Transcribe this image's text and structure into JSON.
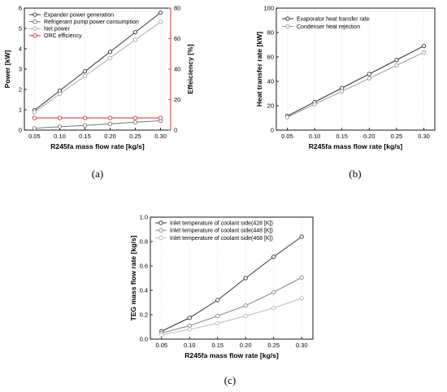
{
  "chart_data": [
    {
      "type": "line",
      "caption": "(a)",
      "x": [
        0.05,
        0.1,
        0.15,
        0.2,
        0.25,
        0.3
      ],
      "x_tick_labels": [
        "0.05",
        "0.10",
        "0.15",
        "0.20",
        "0.25",
        "0.30"
      ],
      "xlabel": "R245fa mass flow rate [kg/s]",
      "ylabel": "Power [kW]",
      "ylim": [
        0,
        6
      ],
      "y_ticks": [
        0,
        1,
        2,
        3,
        4,
        5,
        6
      ],
      "y2label": "Effeiciency [%]",
      "y2lim": [
        0,
        80
      ],
      "y2_ticks": [
        0,
        20,
        40,
        60,
        80
      ],
      "y2_color": "#d03030",
      "grid": true,
      "legend_position": "top-left",
      "series": [
        {
          "name": "Expander power generation",
          "values": [
            0.97,
            1.94,
            2.89,
            3.85,
            4.82,
            5.78
          ],
          "color": "#333333",
          "axis": "left"
        },
        {
          "name": "Refrigerant pump power consumption",
          "values": [
            0.09,
            0.17,
            0.23,
            0.31,
            0.39,
            0.46
          ],
          "color": "#777777",
          "axis": "left"
        },
        {
          "name": "Net power",
          "values": [
            0.88,
            1.78,
            2.66,
            3.55,
            4.44,
            5.32
          ],
          "color": "#aaaaaa",
          "axis": "left"
        },
        {
          "name": "ORC efficiency",
          "values": [
            8.0,
            8.0,
            8.0,
            8.0,
            8.0,
            8.0
          ],
          "color": "#d03030",
          "axis": "right"
        }
      ]
    },
    {
      "type": "line",
      "caption": "(b)",
      "x": [
        0.05,
        0.1,
        0.15,
        0.2,
        0.25,
        0.3
      ],
      "x_tick_labels": [
        "0.05",
        "0.10",
        "0.15",
        "0.20",
        "0.25",
        "0.30"
      ],
      "xlabel": "R245fa mass flow rate [kg/s]",
      "ylabel": "Heat transfer rate [kW]",
      "ylim": [
        0,
        100
      ],
      "y_ticks": [
        0,
        20,
        40,
        60,
        80,
        100
      ],
      "grid": true,
      "legend_position": "top-left",
      "series": [
        {
          "name": "Evaporator heat transfer rate",
          "values": [
            11.5,
            23.0,
            34.5,
            46.0,
            57.5,
            69.0
          ],
          "color": "#333333"
        },
        {
          "name": "Condenser heat rejection",
          "values": [
            10.6,
            21.2,
            31.8,
            42.4,
            53.1,
            63.7
          ],
          "color": "#999999"
        }
      ]
    },
    {
      "type": "line",
      "caption": "(c)",
      "x": [
        0.05,
        0.1,
        0.15,
        0.2,
        0.25,
        0.3
      ],
      "x_tick_labels": [
        "0.05",
        "0.10",
        "0.15",
        "0.20",
        "0.25",
        "0.30"
      ],
      "xlabel": "R245fa mass flow rate [kg/s]",
      "ylabel": "TEG mass flow rate [kg/s]",
      "ylim": [
        0,
        1.0
      ],
      "y_ticks": [
        0.0,
        0.2,
        0.4,
        0.6,
        0.8,
        1.0
      ],
      "y_tick_labels": [
        "0.0",
        "0.2",
        "0.4",
        "0.6",
        "0.8",
        "1.0"
      ],
      "grid": true,
      "legend_position": "top-left",
      "series": [
        {
          "name": "Inlet temperature of coolant side(428 [K])",
          "values": [
            0.065,
            0.175,
            0.32,
            0.5,
            0.675,
            0.84
          ],
          "color": "#333333"
        },
        {
          "name": "Inlet temperature of coolant side(448 [K])",
          "values": [
            0.05,
            0.11,
            0.19,
            0.275,
            0.385,
            0.505
          ],
          "color": "#888888"
        },
        {
          "name": "Inlet temperature of coolant side(468 [K])",
          "values": [
            0.035,
            0.08,
            0.13,
            0.19,
            0.255,
            0.335
          ],
          "color": "#bbbbbb"
        }
      ]
    }
  ]
}
